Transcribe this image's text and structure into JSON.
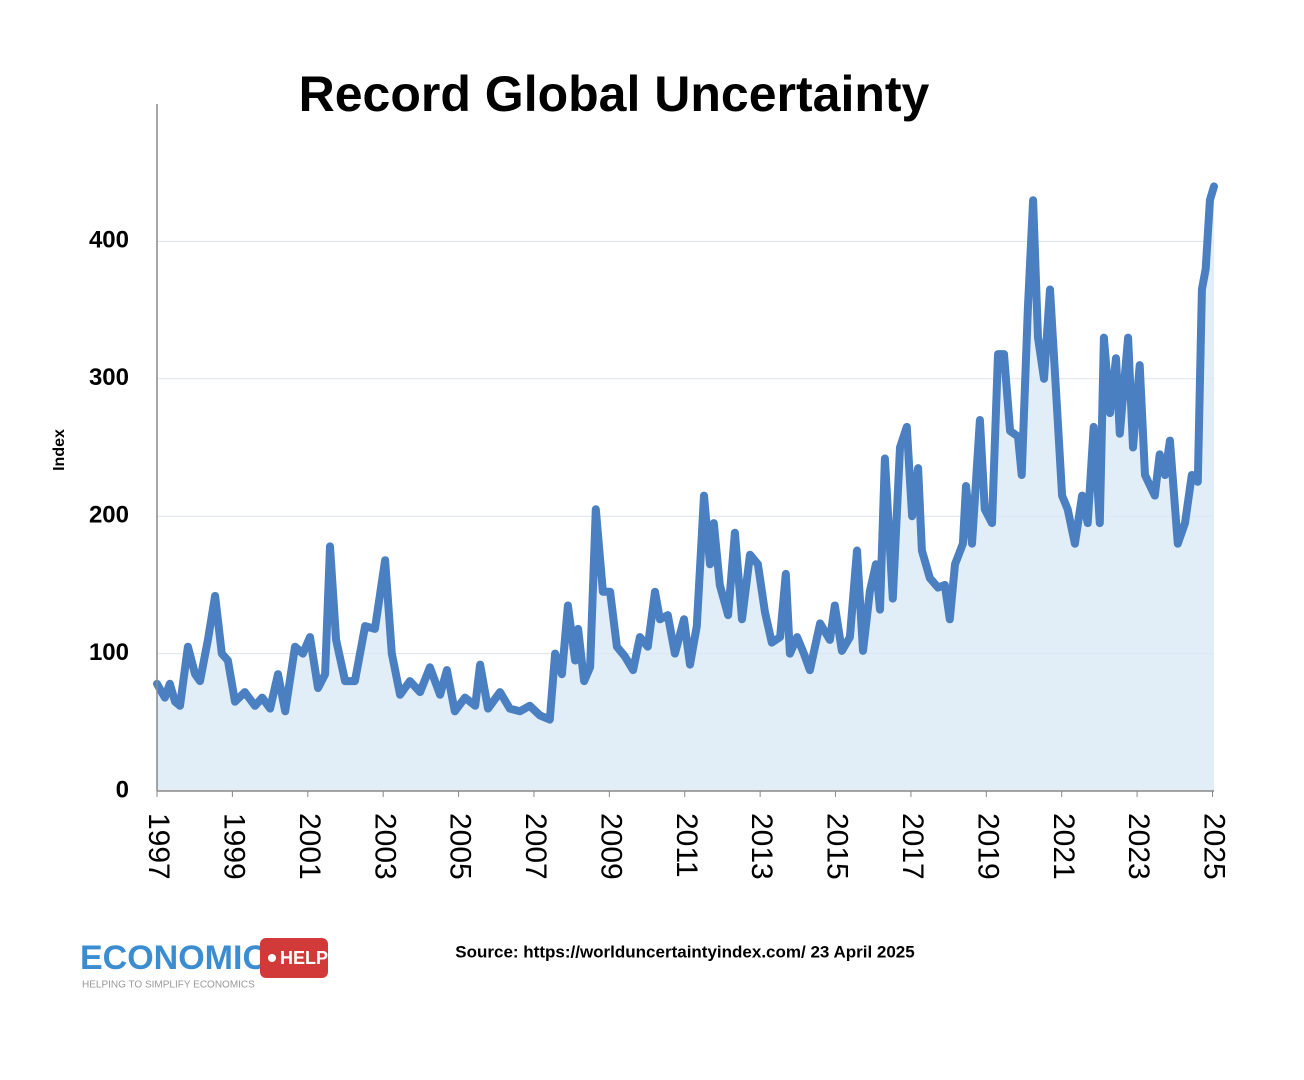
{
  "chart_data": {
    "type": "line",
    "title": "Record Global Uncertainty",
    "y_label": "Index",
    "x": [
      1997.0,
      1997.21,
      1997.34,
      1997.48,
      1997.61,
      1997.82,
      1998.01,
      1998.14,
      1998.35,
      1998.54,
      1998.72,
      1998.88,
      1999.07,
      1999.33,
      1999.6,
      1999.79,
      2000.0,
      2000.21,
      2000.4,
      2000.66,
      2000.87,
      2001.06,
      2001.27,
      2001.46,
      2001.59,
      2001.75,
      2001.99,
      2002.25,
      2002.52,
      2002.78,
      2003.05,
      2003.23,
      2003.45,
      2003.71,
      2003.98,
      2004.24,
      2004.51,
      2004.69,
      2004.9,
      2005.17,
      2005.44,
      2005.57,
      2005.78,
      2006.1,
      2006.36,
      2006.63,
      2006.89,
      2007.16,
      2007.42,
      2007.56,
      2007.74,
      2007.9,
      2008.09,
      2008.17,
      2008.33,
      2008.49,
      2008.64,
      2008.83,
      2009.02,
      2009.2,
      2009.41,
      2009.63,
      2009.81,
      2010.02,
      2010.21,
      2010.34,
      2010.55,
      2010.74,
      2010.98,
      2011.14,
      2011.32,
      2011.51,
      2011.67,
      2011.77,
      2011.93,
      2012.15,
      2012.33,
      2012.52,
      2012.73,
      2012.94,
      2013.13,
      2013.31,
      2013.53,
      2013.68,
      2013.79,
      2013.98,
      2014.16,
      2014.32,
      2014.59,
      2014.85,
      2014.98,
      2015.17,
      2015.38,
      2015.57,
      2015.73,
      2015.91,
      2016.07,
      2016.18,
      2016.31,
      2016.52,
      2016.71,
      2016.89,
      2017.03,
      2017.19,
      2017.29,
      2017.5,
      2017.72,
      2017.9,
      2018.03,
      2018.17,
      2018.38,
      2018.46,
      2018.62,
      2018.83,
      2018.96,
      2019.15,
      2019.31,
      2019.47,
      2019.63,
      2019.84,
      2019.94,
      2020.1,
      2020.24,
      2020.37,
      2020.53,
      2020.69,
      2020.85,
      2021.01,
      2021.16,
      2021.35,
      2021.54,
      2021.69,
      2021.85,
      2022.01,
      2022.12,
      2022.28,
      2022.44,
      2022.54,
      2022.76,
      2022.89,
      2023.07,
      2023.21,
      2023.47,
      2023.6,
      2023.74,
      2023.87,
      2024.08,
      2024.27,
      2024.45,
      2024.61,
      2024.72,
      2024.82,
      2024.93,
      2025.04
    ],
    "values": [
      78,
      68,
      78,
      65,
      62,
      105,
      85,
      80,
      110,
      142,
      100,
      95,
      65,
      72,
      62,
      68,
      60,
      85,
      58,
      105,
      100,
      112,
      75,
      85,
      178,
      110,
      80,
      80,
      120,
      118,
      168,
      100,
      70,
      80,
      72,
      90,
      70,
      88,
      58,
      68,
      62,
      92,
      60,
      72,
      60,
      58,
      62,
      55,
      52,
      100,
      85,
      135,
      95,
      118,
      80,
      90,
      205,
      145,
      145,
      105,
      98,
      88,
      112,
      105,
      145,
      125,
      128,
      100,
      125,
      92,
      120,
      215,
      165,
      195,
      150,
      128,
      188,
      125,
      172,
      165,
      130,
      108,
      112,
      158,
      100,
      112,
      100,
      88,
      122,
      110,
      135,
      102,
      112,
      175,
      102,
      145,
      165,
      132,
      242,
      140,
      250,
      265,
      200,
      235,
      175,
      155,
      148,
      150,
      125,
      165,
      180,
      222,
      180,
      270,
      205,
      195,
      318,
      318,
      262,
      258,
      230,
      350,
      430,
      330,
      300,
      365,
      290,
      215,
      205,
      180,
      215,
      195,
      265,
      195,
      330,
      275,
      315,
      260,
      330,
      250,
      310,
      230,
      215,
      245,
      230,
      255,
      180,
      195,
      230,
      225,
      365,
      380,
      430,
      440
    ],
    "color": "#4a7fc1",
    "fill": "#d9e8f5",
    "xlim": [
      1997,
      2025.04
    ],
    "xticks": [
      1997,
      1999,
      2001,
      2003,
      2005,
      2007,
      2009,
      2011,
      2013,
      2015,
      2017,
      2019,
      2021,
      2023,
      2025
    ],
    "ylim": [
      0,
      500
    ],
    "yticks": [
      0,
      100,
      200,
      300,
      400
    ],
    "grid": true
  },
  "footer": {
    "logo": "ECONOMICS",
    "logo_tag": "HELP",
    "tagline": "HELPING TO SIMPLIFY ECONOMICS",
    "source": "Source: https://worlduncertaintyindex.com/ 23 April 2025"
  }
}
